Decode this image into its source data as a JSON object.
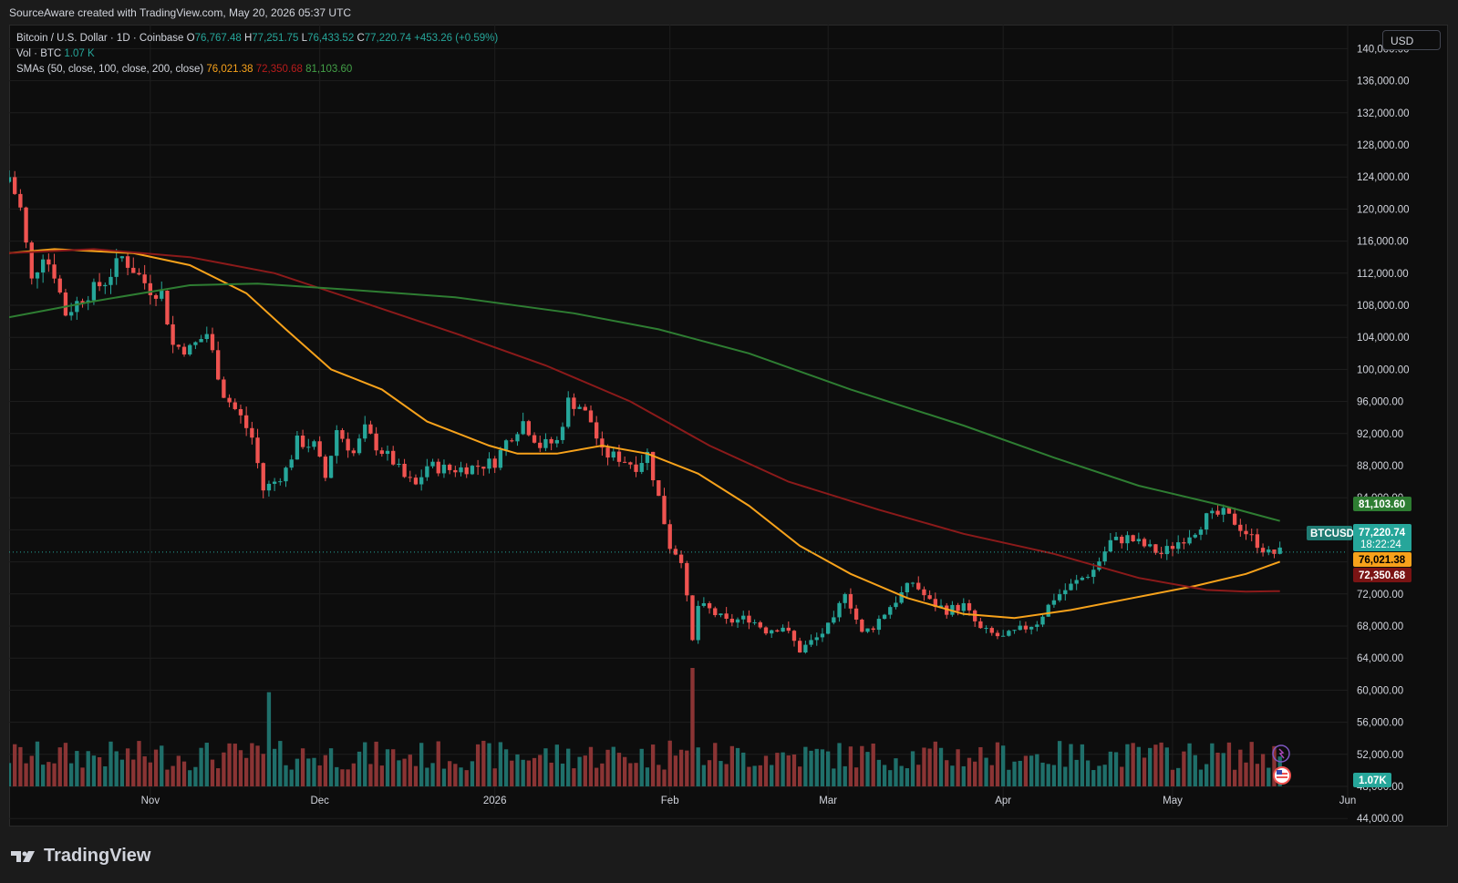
{
  "header": {
    "text": "SourceAware created with TradingView.com, May 20, 2026 05:37 UTC"
  },
  "legend": {
    "symbol": "Bitcoin / U.S. Dollar · 1D · Coinbase",
    "o_label": "O",
    "o_value": "76,767.48",
    "h_label": "H",
    "h_value": "77,251.75",
    "l_label": "L",
    "l_value": "76,433.52",
    "c_label": "C",
    "c_value": "77,220.74",
    "change": "+453.26 (+0.59%)",
    "vol_label": "Vol · BTC",
    "vol_value": "1.07 K",
    "sma_label": "SMAs (50, close, 100, close, 200, close)",
    "sma50": "76,021.38",
    "sma100": "72,350.68",
    "sma200": "81,103.60"
  },
  "currency_button": "USD",
  "price_tags": {
    "sma200": "81,103.60",
    "symbol": "BTCUSD",
    "last": "77,220.74",
    "countdown": "18:22:24",
    "sma50": "76,021.38",
    "sma100": "72,350.68",
    "volume": "1.07K"
  },
  "colors": {
    "up": "#26a69a",
    "down": "#ef5350",
    "sma50": "#f7a21b",
    "sma100": "#8b1a1a",
    "sma200": "#2e7d32",
    "vol_up": "#1f6f6a",
    "vol_down": "#8a3434"
  },
  "footer": {
    "brand": "TradingView"
  },
  "chart_data": {
    "type": "candlestick",
    "title": "Bitcoin / U.S. Dollar · 1D · Coinbase",
    "x_axis": {
      "ticks": [
        {
          "label": "Nov",
          "date": "2025-11-01"
        },
        {
          "label": "Dec",
          "date": "2025-12-01"
        },
        {
          "label": "2026",
          "date": "2026-01-01"
        },
        {
          "label": "Feb",
          "date": "2026-02-01"
        },
        {
          "label": "Mar",
          "date": "2026-03-01"
        },
        {
          "label": "Apr",
          "date": "2026-04-01"
        },
        {
          "label": "May",
          "date": "2026-05-01"
        },
        {
          "label": "Jun",
          "date": "2026-06-01"
        }
      ],
      "range": [
        "2025-10-07",
        "2026-06-01"
      ]
    },
    "y_axis": {
      "ticks": [
        44000,
        48000,
        52000,
        56000,
        60000,
        64000,
        68000,
        72000,
        76000,
        80000,
        84000,
        88000,
        92000,
        96000,
        100000,
        104000,
        108000,
        112000,
        116000,
        120000,
        124000,
        128000,
        132000,
        136000,
        140000
      ],
      "range": [
        43000,
        143000
      ]
    },
    "price_path": [
      [
        "2025-10-07",
        124000
      ],
      [
        "2025-10-09",
        120000
      ],
      [
        "2025-10-11",
        111000
      ],
      [
        "2025-10-13",
        114500
      ],
      [
        "2025-10-15",
        112000
      ],
      [
        "2025-10-17",
        107000
      ],
      [
        "2025-10-20",
        109000
      ],
      [
        "2025-10-24",
        111000
      ],
      [
        "2025-10-27",
        114000
      ],
      [
        "2025-10-29",
        112500
      ],
      [
        "2025-11-01",
        110000
      ],
      [
        "2025-11-03",
        109500
      ],
      [
        "2025-11-05",
        103000
      ],
      [
        "2025-11-08",
        102500
      ],
      [
        "2025-11-11",
        104500
      ],
      [
        "2025-11-14",
        97000
      ],
      [
        "2025-11-17",
        94000
      ],
      [
        "2025-11-19",
        91500
      ],
      [
        "2025-11-21",
        85000
      ],
      [
        "2025-11-23",
        86000
      ],
      [
        "2025-11-25",
        87500
      ],
      [
        "2025-11-27",
        91000
      ],
      [
        "2025-11-30",
        90500
      ],
      [
        "2025-12-02",
        86500
      ],
      [
        "2025-12-04",
        92500
      ],
      [
        "2025-12-07",
        89500
      ],
      [
        "2025-12-09",
        92500
      ],
      [
        "2025-12-11",
        90500
      ],
      [
        "2025-12-14",
        88500
      ],
      [
        "2025-12-16",
        86500
      ],
      [
        "2025-12-18",
        85500
      ],
      [
        "2025-12-20",
        88000
      ],
      [
        "2025-12-24",
        87500
      ],
      [
        "2025-12-28",
        87800
      ],
      [
        "2026-01-01",
        88500
      ],
      [
        "2026-01-03",
        91000
      ],
      [
        "2026-01-06",
        93500
      ],
      [
        "2026-01-09",
        90500
      ],
      [
        "2026-01-12",
        91000
      ],
      [
        "2026-01-14",
        96000
      ],
      [
        "2026-01-16",
        95500
      ],
      [
        "2026-01-18",
        93500
      ],
      [
        "2026-01-20",
        89500
      ],
      [
        "2026-01-23",
        89000
      ],
      [
        "2026-01-26",
        88000
      ],
      [
        "2026-01-28",
        89500
      ],
      [
        "2026-01-30",
        84000
      ],
      [
        "2026-02-01",
        78000
      ],
      [
        "2026-02-03",
        76500
      ],
      [
        "2026-02-05",
        66000
      ],
      [
        "2026-02-06",
        70500
      ],
      [
        "2026-02-08",
        70000
      ],
      [
        "2026-02-11",
        68500
      ],
      [
        "2026-02-15",
        69000
      ],
      [
        "2026-02-18",
        67500
      ],
      [
        "2026-02-21",
        68000
      ],
      [
        "2026-02-24",
        65000
      ],
      [
        "2026-02-27",
        66500
      ],
      [
        "2026-03-02",
        68500
      ],
      [
        "2026-03-04",
        72500
      ],
      [
        "2026-03-07",
        67000
      ],
      [
        "2026-03-09",
        68000
      ],
      [
        "2026-03-12",
        70500
      ],
      [
        "2026-03-16",
        73500
      ],
      [
        "2026-03-19",
        71000
      ],
      [
        "2026-03-22",
        70000
      ],
      [
        "2026-03-25",
        70500
      ],
      [
        "2026-03-28",
        67500
      ],
      [
        "2026-04-01",
        66500
      ],
      [
        "2026-04-04",
        67500
      ],
      [
        "2026-04-07",
        68500
      ],
      [
        "2026-04-10",
        71500
      ],
      [
        "2026-04-14",
        73500
      ],
      [
        "2026-04-17",
        75000
      ],
      [
        "2026-04-20",
        78500
      ],
      [
        "2026-04-23",
        79000
      ],
      [
        "2026-04-26",
        78000
      ],
      [
        "2026-04-29",
        77000
      ],
      [
        "2026-05-02",
        78500
      ],
      [
        "2026-05-05",
        80000
      ],
      [
        "2026-05-07",
        81500
      ],
      [
        "2026-05-10",
        82000
      ],
      [
        "2026-05-12",
        81000
      ],
      [
        "2026-05-15",
        79000
      ],
      [
        "2026-05-18",
        77000
      ],
      [
        "2026-05-20",
        77220.74
      ]
    ],
    "volume_spikes": [
      [
        "2025-11-22",
        17500
      ],
      [
        "2026-02-05",
        22000
      ],
      [
        "2026-02-01",
        8500
      ]
    ],
    "series": [
      {
        "name": "SMA 50",
        "color": "#f7a21b",
        "points": [
          [
            "2025-10-07",
            114500
          ],
          [
            "2025-10-15",
            115000
          ],
          [
            "2025-10-29",
            114500
          ],
          [
            "2025-11-08",
            113000
          ],
          [
            "2025-11-18",
            109500
          ],
          [
            "2025-11-25",
            105000
          ],
          [
            "2025-12-03",
            100000
          ],
          [
            "2025-12-12",
            97500
          ],
          [
            "2025-12-20",
            93500
          ],
          [
            "2025-12-31",
            90500
          ],
          [
            "2026-01-05",
            89500
          ],
          [
            "2026-01-12",
            89500
          ],
          [
            "2026-01-20",
            90500
          ],
          [
            "2026-01-28",
            89500
          ],
          [
            "2026-02-06",
            87000
          ],
          [
            "2026-02-15",
            83000
          ],
          [
            "2026-02-24",
            78000
          ],
          [
            "2026-03-05",
            74500
          ],
          [
            "2026-03-15",
            71500
          ],
          [
            "2026-03-25",
            69500
          ],
          [
            "2026-04-03",
            69000
          ],
          [
            "2026-04-13",
            70000
          ],
          [
            "2026-04-24",
            71500
          ],
          [
            "2026-05-05",
            73000
          ],
          [
            "2026-05-14",
            74500
          ],
          [
            "2026-05-20",
            76021.38
          ]
        ]
      },
      {
        "name": "SMA 100",
        "color": "#8b1a1a",
        "points": [
          [
            "2025-10-07",
            114500
          ],
          [
            "2025-10-22",
            115000
          ],
          [
            "2025-11-08",
            114000
          ],
          [
            "2025-11-23",
            112000
          ],
          [
            "2025-12-08",
            108500
          ],
          [
            "2025-12-25",
            104500
          ],
          [
            "2026-01-10",
            100500
          ],
          [
            "2026-01-25",
            96000
          ],
          [
            "2026-02-08",
            90500
          ],
          [
            "2026-02-22",
            86000
          ],
          [
            "2026-03-10",
            82500
          ],
          [
            "2026-03-25",
            79500
          ],
          [
            "2026-04-10",
            77000
          ],
          [
            "2026-04-25",
            74000
          ],
          [
            "2026-05-07",
            72500
          ],
          [
            "2026-05-14",
            72300
          ],
          [
            "2026-05-20",
            72350.68
          ]
        ]
      },
      {
        "name": "SMA 200",
        "color": "#2e7d32",
        "points": [
          [
            "2025-10-07",
            106500
          ],
          [
            "2025-10-22",
            108500
          ],
          [
            "2025-11-08",
            110500
          ],
          [
            "2025-11-20",
            110700
          ],
          [
            "2025-12-05",
            110000
          ],
          [
            "2025-12-25",
            109000
          ],
          [
            "2026-01-15",
            107000
          ],
          [
            "2026-01-30",
            105000
          ],
          [
            "2026-02-15",
            102000
          ],
          [
            "2026-03-05",
            97500
          ],
          [
            "2026-03-25",
            93000
          ],
          [
            "2026-04-10",
            89000
          ],
          [
            "2026-04-25",
            85500
          ],
          [
            "2026-05-10",
            83000
          ],
          [
            "2026-05-20",
            81103.6
          ]
        ]
      }
    ]
  }
}
